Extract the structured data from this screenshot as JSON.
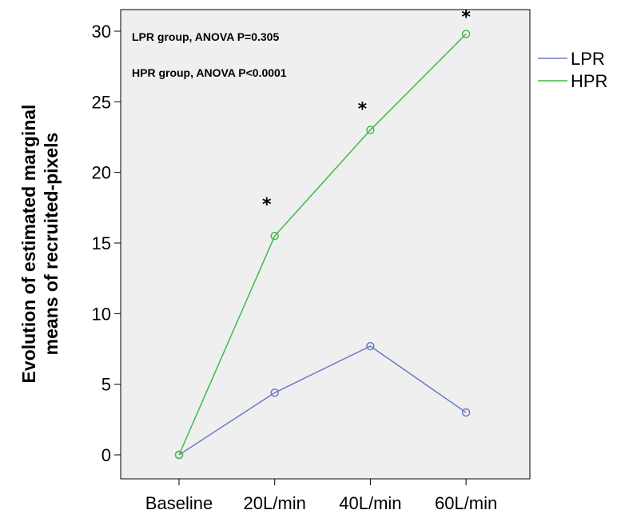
{
  "chart_data": {
    "type": "line",
    "title": "",
    "xlabel": "",
    "ylabel_lines": [
      "Evolution of estimated marginal",
      "means of recruited-pixels"
    ],
    "categories": [
      "Baseline",
      "20L/min",
      "40L/min",
      "60L/min"
    ],
    "ylim": [
      -1.5,
      31.5
    ],
    "yticks": [
      0,
      5,
      10,
      15,
      20,
      25,
      30
    ],
    "grid": false,
    "background": "#efefef",
    "legend_position": "right",
    "series": [
      {
        "name": "LPR",
        "values": [
          0,
          4.4,
          7.7,
          3.0
        ],
        "color": "#6b7cc4"
      },
      {
        "name": "HPR",
        "values": [
          0,
          15.5,
          23.0,
          29.8
        ],
        "color": "#3dbb4a"
      }
    ],
    "significance": [
      {
        "category": "20L/min",
        "label": "*"
      },
      {
        "category": "40L/min",
        "label": "*"
      },
      {
        "category": "60L/min",
        "label": "*"
      }
    ],
    "annotations": [
      "LPR group,  ANOVA P=0.305",
      "HPR group,  ANOVA P<0.0001"
    ]
  }
}
